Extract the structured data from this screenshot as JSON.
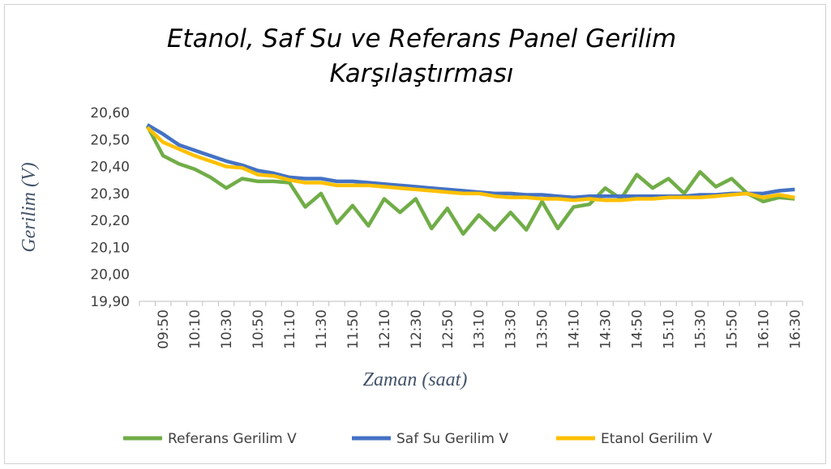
{
  "chart_data": {
    "type": "line",
    "title": [
      "Etanol, Saf Su ve Referans Panel Gerilim",
      "Karşılaştırması"
    ],
    "y_label": "Gerilim (V)",
    "x_label": "Zaman (saat)",
    "categories": [
      null,
      "09:50",
      null,
      "10:10",
      null,
      "10:30",
      null,
      "10:50",
      null,
      "11:10",
      null,
      "11:30",
      null,
      "11:50",
      null,
      "12:10",
      null,
      "12:30",
      null,
      "12:50",
      null,
      "13:10",
      null,
      "13:30",
      null,
      "13:50",
      null,
      "14:10",
      null,
      "14:30",
      null,
      "14:50",
      null,
      "15:10",
      null,
      "15:30",
      null,
      "15:50",
      null,
      "16:10",
      null,
      "16:30"
    ],
    "series": [
      {
        "name": "Referans Gerilim V",
        "color": "#70ad47",
        "values": [
          20.55,
          20.44,
          20.41,
          20.39,
          20.36,
          20.32,
          20.355,
          20.345,
          20.345,
          20.34,
          20.25,
          20.3,
          20.19,
          20.255,
          20.18,
          20.28,
          20.23,
          20.28,
          20.17,
          20.245,
          20.15,
          20.22,
          20.165,
          20.23,
          20.165,
          20.27,
          20.17,
          20.25,
          20.26,
          20.32,
          20.28,
          20.37,
          20.32,
          20.355,
          20.3,
          20.38,
          20.325,
          20.355,
          20.3,
          20.27,
          20.285,
          20.28
        ]
      },
      {
        "name": "Saf Su Gerilim V",
        "color": "#4472c4",
        "values": [
          20.555,
          20.52,
          20.48,
          20.46,
          20.44,
          20.42,
          20.405,
          20.385,
          20.375,
          20.36,
          20.355,
          20.355,
          20.345,
          20.345,
          20.34,
          20.335,
          20.33,
          20.325,
          20.32,
          20.315,
          20.31,
          20.305,
          20.3,
          20.3,
          20.295,
          20.295,
          20.29,
          20.285,
          20.29,
          20.29,
          20.29,
          20.29,
          20.29,
          20.29,
          20.29,
          20.295,
          20.295,
          20.3,
          20.3,
          20.3,
          20.31,
          20.315
        ]
      },
      {
        "name": "Etanol Gerilim V",
        "color": "#ffc000",
        "values": [
          20.545,
          20.49,
          20.465,
          20.44,
          20.42,
          20.4,
          20.395,
          20.37,
          20.365,
          20.35,
          20.34,
          20.34,
          20.33,
          20.33,
          20.33,
          20.325,
          20.32,
          20.315,
          20.31,
          20.305,
          20.3,
          20.3,
          20.29,
          20.285,
          20.285,
          20.28,
          20.28,
          20.275,
          20.28,
          20.275,
          20.275,
          20.28,
          20.28,
          20.285,
          20.285,
          20.285,
          20.29,
          20.295,
          20.3,
          20.285,
          20.295,
          20.285
        ]
      }
    ],
    "ylim": [
      19.9,
      20.6
    ],
    "yticks": [
      {
        "value": 19.9,
        "label": "19,90"
      },
      {
        "value": 20.0,
        "label": "20,00"
      },
      {
        "value": 20.1,
        "label": "20,10"
      },
      {
        "value": 20.2,
        "label": "20,20"
      },
      {
        "value": 20.3,
        "label": "20,30"
      },
      {
        "value": 20.4,
        "label": "20,40"
      },
      {
        "value": 20.5,
        "label": "20,50"
      },
      {
        "value": 20.6,
        "label": "20,60"
      }
    ],
    "legend": "bottom"
  }
}
